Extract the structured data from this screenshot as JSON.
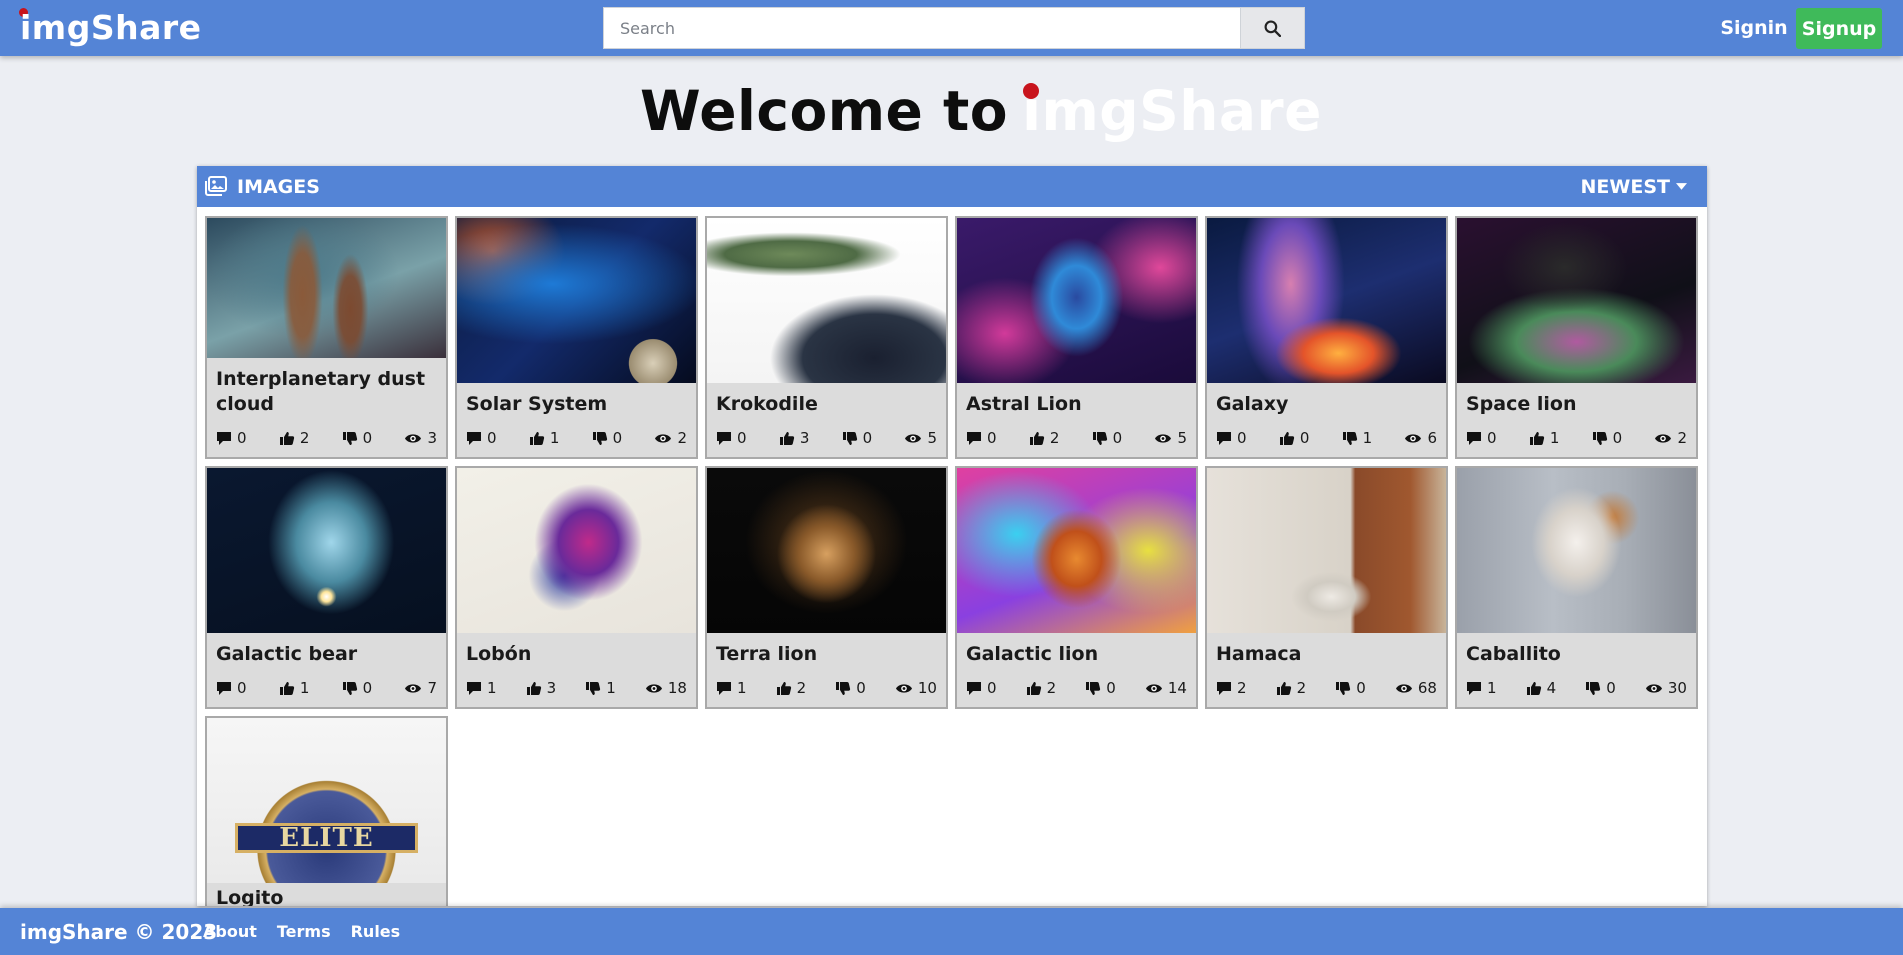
{
  "navbar": {
    "logo": "imgShare",
    "search": {
      "placeholder": "Search",
      "value": ""
    },
    "signin_label": "Signin",
    "signup_label": "Signup"
  },
  "welcome": {
    "prefix": "Welcome to",
    "logo": "imgShare"
  },
  "images_panel": {
    "title": "IMAGES",
    "sort_label": "NEWEST",
    "items": [
      {
        "title": "Interplanetary dust cloud",
        "comments": "0",
        "likes": "2",
        "dislikes": "0",
        "views": "3"
      },
      {
        "title": "Solar System",
        "comments": "0",
        "likes": "1",
        "dislikes": "0",
        "views": "2"
      },
      {
        "title": "Krokodile",
        "comments": "0",
        "likes": "3",
        "dislikes": "0",
        "views": "5"
      },
      {
        "title": "Astral Lion",
        "comments": "0",
        "likes": "2",
        "dislikes": "0",
        "views": "5"
      },
      {
        "title": "Galaxy",
        "comments": "0",
        "likes": "0",
        "dislikes": "1",
        "views": "6"
      },
      {
        "title": "Space lion",
        "comments": "0",
        "likes": "1",
        "dislikes": "0",
        "views": "2"
      },
      {
        "title": "Galactic bear",
        "comments": "0",
        "likes": "1",
        "dislikes": "0",
        "views": "7"
      },
      {
        "title": "Lobón",
        "comments": "1",
        "likes": "3",
        "dislikes": "1",
        "views": "18"
      },
      {
        "title": "Terra lion",
        "comments": "1",
        "likes": "2",
        "dislikes": "0",
        "views": "10"
      },
      {
        "title": "Galactic lion",
        "comments": "0",
        "likes": "2",
        "dislikes": "0",
        "views": "14"
      },
      {
        "title": "Hamaca",
        "comments": "2",
        "likes": "2",
        "dislikes": "0",
        "views": "68"
      },
      {
        "title": "Caballito",
        "comments": "1",
        "likes": "4",
        "dislikes": "0",
        "views": "30"
      },
      {
        "title": "Logito",
        "badge_text": "ELITE"
      }
    ]
  },
  "footer": {
    "brand": "imgShare © 2023",
    "links": [
      "About",
      "Terms",
      "Rules"
    ]
  },
  "colors": {
    "primary": "#5484d6",
    "signup": "#3fba5a",
    "logo_dot": "#c8141d",
    "card_bg": "#dcdcdc"
  },
  "icons": [
    "search-icon",
    "images-icon",
    "caret-down-icon",
    "comment-icon",
    "thumbs-up-icon",
    "thumbs-down-icon",
    "eye-icon"
  ]
}
